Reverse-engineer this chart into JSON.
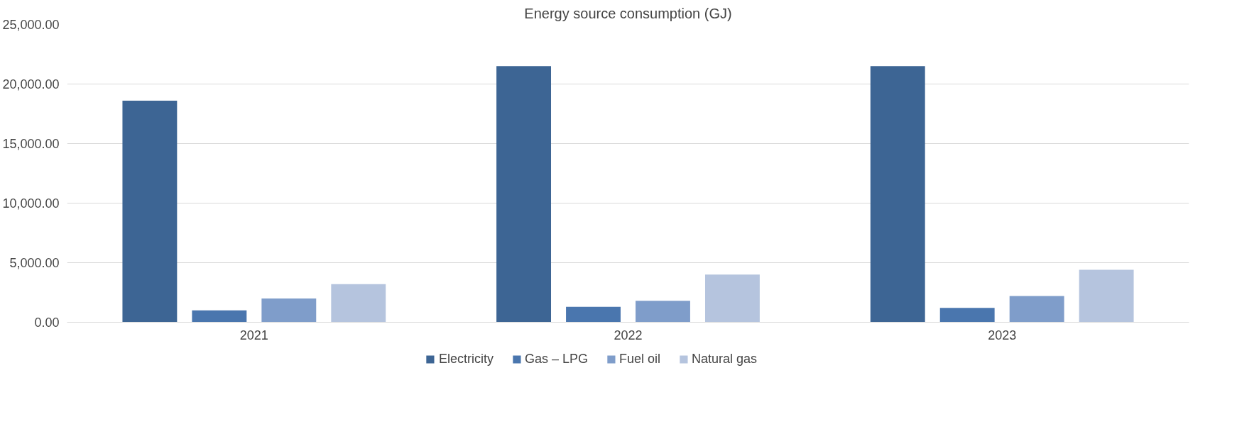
{
  "chart_data": {
    "type": "bar",
    "title": "Energy source consumption (GJ)",
    "categories": [
      "2021",
      "2022",
      "2023"
    ],
    "series": [
      {
        "name": "Electricity",
        "color": "#3d6594",
        "values": [
          18600,
          21500,
          21500
        ]
      },
      {
        "name": "Gas – LPG",
        "color": "#4a76ae",
        "values": [
          1000,
          1300,
          1200
        ]
      },
      {
        "name": "Fuel oil",
        "color": "#7f9dca",
        "values": [
          2000,
          1800,
          2200
        ]
      },
      {
        "name": "Natural gas",
        "color": "#b5c4de",
        "values": [
          3200,
          4000,
          4400
        ]
      }
    ],
    "ylim": [
      0,
      25000
    ],
    "yticks": [
      {
        "value": 0,
        "label": "0.00"
      },
      {
        "value": 5000,
        "label": "5,000.00"
      },
      {
        "value": 10000,
        "label": "10,000.00"
      },
      {
        "value": 15000,
        "label": "15,000.00"
      },
      {
        "value": 20000,
        "label": "20,000.00"
      },
      {
        "value": 25000,
        "label": "25,000.00"
      }
    ],
    "grid": "y",
    "legend": "bottom"
  }
}
